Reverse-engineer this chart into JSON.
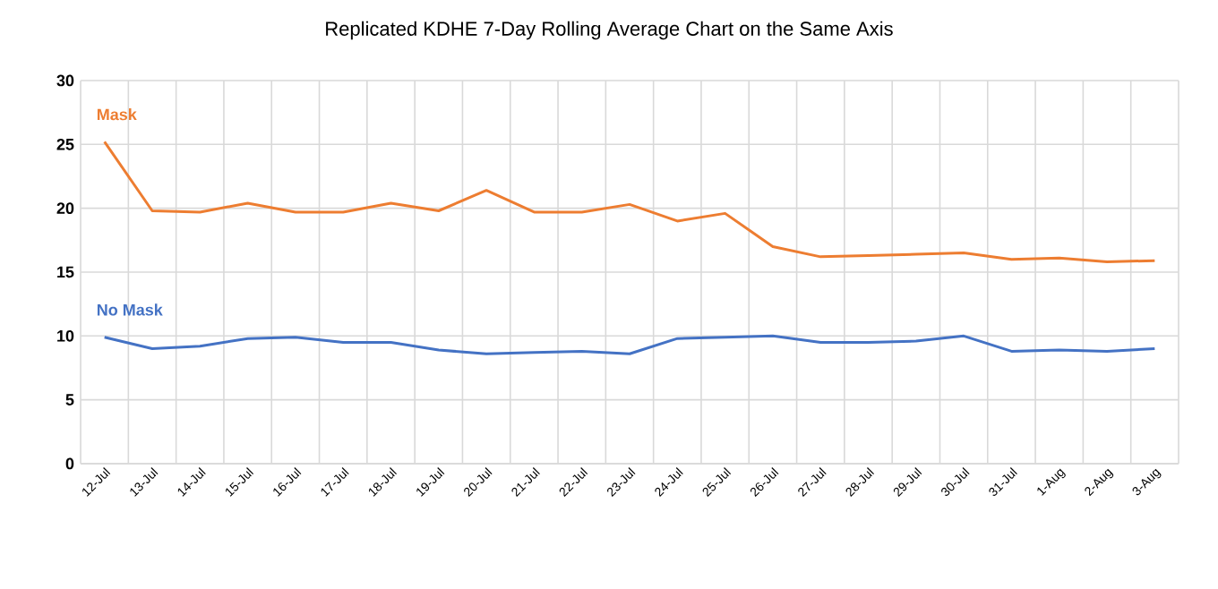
{
  "chart_data": {
    "type": "line",
    "title": "Replicated KDHE 7-Day Rolling Average Chart on the Same Axis",
    "categories": [
      "12-Jul",
      "13-Jul",
      "14-Jul",
      "15-Jul",
      "16-Jul",
      "17-Jul",
      "18-Jul",
      "19-Jul",
      "20-Jul",
      "21-Jul",
      "22-Jul",
      "23-Jul",
      "24-Jul",
      "25-Jul",
      "26-Jul",
      "27-Jul",
      "28-Jul",
      "29-Jul",
      "30-Jul",
      "31-Jul",
      "1-Aug",
      "2-Aug",
      "3-Aug"
    ],
    "series": [
      {
        "name": "Mask",
        "color": "#ed7d31",
        "values": [
          25.2,
          19.8,
          19.7,
          20.4,
          19.7,
          19.7,
          20.4,
          19.8,
          21.4,
          19.7,
          19.7,
          20.3,
          19.0,
          19.6,
          17.0,
          16.2,
          16.3,
          16.4,
          16.5,
          16.0,
          16.1,
          15.8,
          15.9
        ]
      },
      {
        "name": "No Mask",
        "color": "#4472c4",
        "values": [
          9.9,
          9.0,
          9.2,
          9.8,
          9.9,
          9.5,
          9.5,
          8.9,
          8.6,
          8.7,
          8.8,
          8.6,
          9.8,
          9.9,
          10.0,
          9.5,
          9.5,
          9.6,
          10.0,
          8.8,
          8.9,
          8.8,
          9.0
        ]
      }
    ],
    "ylim": [
      0,
      30
    ],
    "yticks": [
      0,
      5,
      10,
      15,
      20,
      25,
      30
    ],
    "grid": true,
    "legend": false,
    "marker": "none",
    "line_style": "solid"
  }
}
